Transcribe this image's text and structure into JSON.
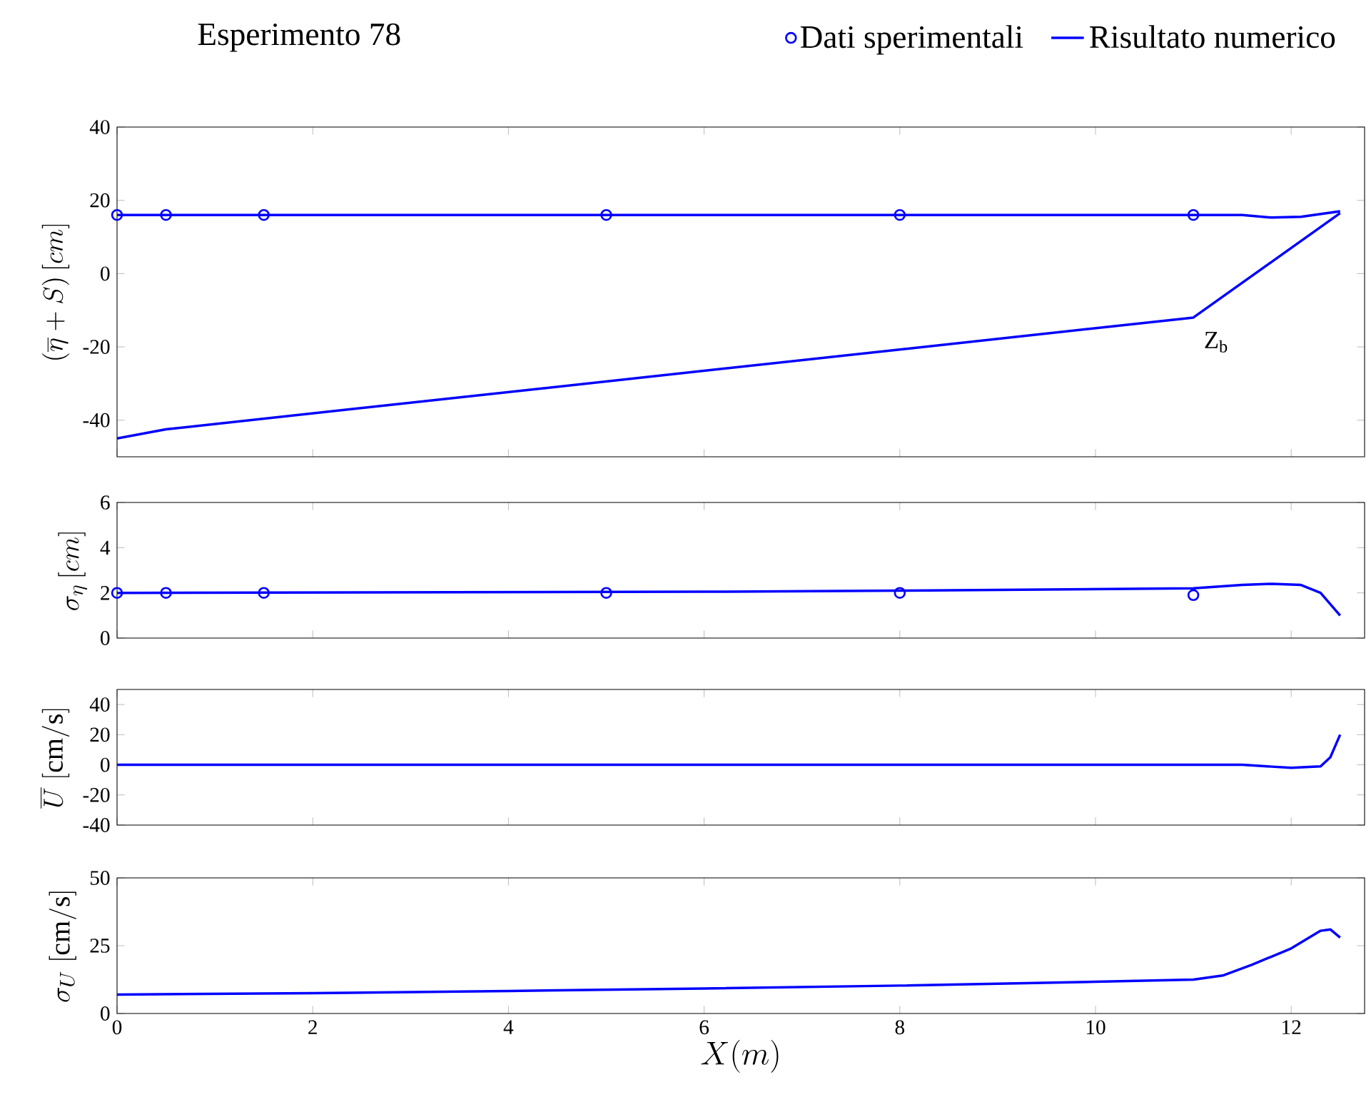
{
  "chart_data": [
    {
      "type": "line",
      "title": "Esperimento 78",
      "ylabel": "(\\overline{\\eta}+S)\\,[cm]",
      "xlim": [
        0,
        12.75
      ],
      "xticks": [
        0,
        2,
        4,
        6,
        8,
        10,
        12
      ],
      "ylim": [
        -50,
        40
      ],
      "yticks": [
        -40,
        -20,
        0,
        20,
        40
      ],
      "tick_labels": "y",
      "legend": "top",
      "grid": false,
      "series": [
        {
          "name": "Dati sperimentali",
          "type": "scatter",
          "marker": "circle",
          "color": "#0000ff",
          "x": [
            0,
            0.5,
            1.5,
            5,
            8,
            11
          ],
          "values": [
            16,
            16,
            16,
            16,
            16,
            16
          ]
        },
        {
          "name": "Risultato numerico",
          "color": "#0000ff",
          "x": [
            0,
            11.5,
            11.8,
            12.1,
            12.5
          ],
          "values": [
            16,
            16,
            15.3,
            15.5,
            17
          ]
        },
        {
          "color": "#0000ff",
          "x": [
            0,
            0.5,
            11,
            12.5
          ],
          "values": [
            -45,
            -42.5,
            -12,
            16.5
          ]
        }
      ],
      "annotations": [
        {
          "text": "Z$_{b}$",
          "x": 11,
          "y": -12
        }
      ]
    },
    {
      "type": "line",
      "ylabel": "\\sigma_{\\eta}\\,[cm]",
      "xlim": [
        0,
        12.75
      ],
      "xticks": [
        0,
        2,
        4,
        6,
        8,
        10,
        12
      ],
      "ylim": [
        0,
        6
      ],
      "yticks": [
        0,
        2,
        4,
        6
      ],
      "tick_labels": "y",
      "grid": false,
      "series": [
        {
          "type": "scatter",
          "marker": "circle",
          "color": "#0000ff",
          "x": [
            0,
            0.5,
            1.5,
            5,
            8,
            11
          ],
          "values": [
            2,
            2,
            2,
            2,
            2,
            1.9
          ]
        },
        {
          "color": "#0000ff",
          "x": [
            0,
            6,
            8,
            11,
            11.5,
            11.8,
            12.1,
            12.3,
            12.5
          ],
          "values": [
            2,
            2.05,
            2.1,
            2.2,
            2.35,
            2.4,
            2.35,
            2,
            1
          ]
        }
      ]
    },
    {
      "type": "line",
      "ylabel": "\\overline{U}\\ [\\mathrm{cm/s}]",
      "xlim": [
        0,
        12.75
      ],
      "xticks": [
        0,
        2,
        4,
        6,
        8,
        10,
        12
      ],
      "ylim": [
        -40,
        50
      ],
      "yticks": [
        -40,
        -20,
        0,
        20,
        40
      ],
      "tick_labels": "y",
      "grid": false,
      "series": [
        {
          "color": "#0000ff",
          "x": [
            0,
            11.5,
            12,
            12.3,
            12.4,
            12.5
          ],
          "values": [
            0,
            0,
            -2,
            -1,
            5,
            20
          ]
        }
      ]
    },
    {
      "type": "line",
      "ylabel": "\\sigma_{U}\\ [\\mathrm{cm/s}]",
      "xlabel": "X(m)",
      "xlim": [
        0,
        12.75
      ],
      "xticks": [
        0,
        2,
        4,
        6,
        8,
        10,
        12
      ],
      "ylim": [
        0,
        50
      ],
      "yticks": [
        0,
        25,
        50
      ],
      "grid": false,
      "series": [
        {
          "color": "#0000ff",
          "x": [
            0,
            2,
            4,
            6,
            8,
            10,
            11,
            11.3,
            11.6,
            12,
            12.3,
            12.4,
            12.5
          ],
          "values": [
            7,
            7.5,
            8.3,
            9.2,
            10.3,
            11.7,
            12.5,
            14,
            18,
            24,
            30.5,
            31,
            28
          ]
        }
      ]
    }
  ]
}
